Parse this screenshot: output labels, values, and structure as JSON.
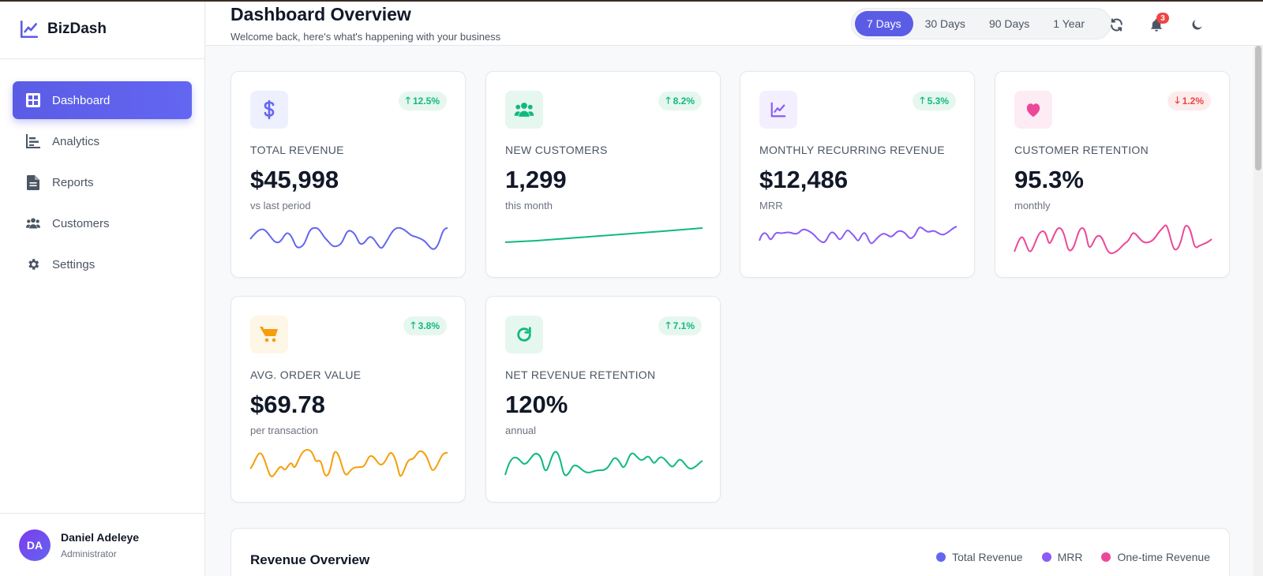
{
  "brand": {
    "name": "BizDash"
  },
  "sidebar": {
    "items": [
      {
        "label": "Dashboard",
        "icon": "grid-icon",
        "active": true
      },
      {
        "label": "Analytics",
        "icon": "bar-chart-icon",
        "active": false
      },
      {
        "label": "Reports",
        "icon": "file-icon",
        "active": false
      },
      {
        "label": "Customers",
        "icon": "users-icon",
        "active": false
      },
      {
        "label": "Settings",
        "icon": "gear-icon",
        "active": false
      }
    ]
  },
  "user": {
    "initials": "DA",
    "name": "Daniel Adeleye",
    "role": "Administrator"
  },
  "header": {
    "title": "Dashboard Overview",
    "subtitle": "Welcome back, here's what's happening with your business",
    "ranges": [
      "7 Days",
      "30 Days",
      "90 Days",
      "1 Year"
    ],
    "active_range": "7 Days",
    "notifications_count": "3"
  },
  "cards": [
    {
      "label": "TOTAL REVENUE",
      "value": "$45,998",
      "sub": "vs last period",
      "change": "12.5%",
      "direction": "up",
      "icon": "dollar-icon",
      "color": "#6366f1",
      "icon_bg": "#eef0ff"
    },
    {
      "label": "NEW CUSTOMERS",
      "value": "1,299",
      "sub": "this month",
      "change": "8.2%",
      "direction": "up",
      "icon": "users-icon",
      "color": "#10b981",
      "icon_bg": "#e6f7ef"
    },
    {
      "label": "MONTHLY RECURRING REVENUE",
      "value": "$12,486",
      "sub": "MRR",
      "change": "5.3%",
      "direction": "up",
      "icon": "line-chart-icon",
      "color": "#8b5cf6",
      "icon_bg": "#f3efff"
    },
    {
      "label": "CUSTOMER RETENTION",
      "value": "95.3%",
      "sub": "monthly",
      "change": "1.2%",
      "direction": "down",
      "icon": "heart-icon",
      "color": "#ec4899",
      "icon_bg": "#fdecf4"
    },
    {
      "label": "AVG. ORDER VALUE",
      "value": "$69.78",
      "sub": "per transaction",
      "change": "3.8%",
      "direction": "up",
      "icon": "cart-icon",
      "color": "#f59e0b",
      "icon_bg": "#fef6e7"
    },
    {
      "label": "NET REVENUE RETENTION",
      "value": "120%",
      "sub": "annual",
      "change": "7.1%",
      "direction": "up",
      "icon": "refresh-icon",
      "color": "#10b981",
      "icon_bg": "#e6f7ef"
    }
  ],
  "revenue_overview": {
    "title": "Revenue Overview",
    "legend": [
      {
        "label": "Total Revenue",
        "color": "#6366f1"
      },
      {
        "label": "MRR",
        "color": "#8b5cf6"
      },
      {
        "label": "One-time Revenue",
        "color": "#ec4899"
      }
    ]
  }
}
